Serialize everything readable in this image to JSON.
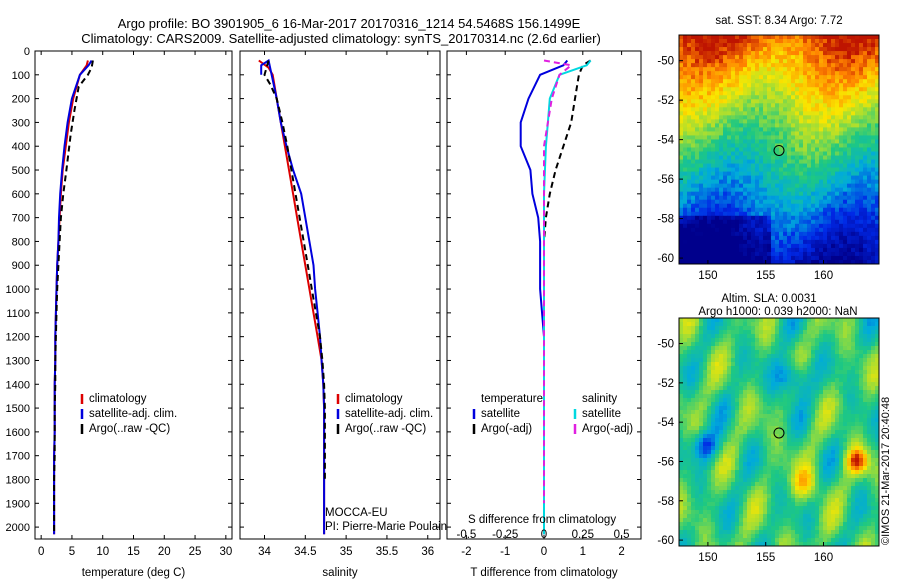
{
  "header": {
    "line1": "Argo profile: BO 3901905_6 16-Mar-2017 20170316_1214 54.5468S 156.1499E",
    "line2": "Climatology: CARS2009. Satellite-adjusted climatology: synTS_20170314.nc (2.6d earlier)"
  },
  "colors": {
    "climatology": "#dd0000",
    "satellite": "#0000dd",
    "argo": "#000000",
    "satellite_salinity": "#00d8e0",
    "argo_salinity_diff": "#e020e0"
  },
  "depth_axis": {
    "ylim": [
      0,
      2050
    ],
    "ticks": [
      "0",
      "100",
      "200",
      "300",
      "400",
      "500",
      "600",
      "700",
      "800",
      "900",
      "1000",
      "1100",
      "1200",
      "1300",
      "1400",
      "1500",
      "1600",
      "1700",
      "1800",
      "1900",
      "2000"
    ]
  },
  "chart_data": [
    {
      "id": "temperature",
      "type": "line",
      "xlabel": "temperature (deg C)",
      "xlim": [
        -1,
        31
      ],
      "xticks": [
        "0",
        "5",
        "10",
        "15",
        "20",
        "25",
        "30"
      ],
      "legend": [
        "climatology",
        "satellite-adj. clim.",
        "Argo(..raw -QC)"
      ],
      "series": [
        {
          "name": "climatology",
          "style": "solid",
          "x": [
            7.6,
            7.4,
            6.3,
            5.2,
            4.5,
            4.0,
            3.5,
            3.2,
            3.0,
            2.8,
            2.6,
            2.5,
            2.4,
            2.3,
            2.3,
            2.2,
            2.2,
            2.2,
            2.1,
            2.1,
            2.1
          ],
          "y": [
            40,
            60,
            100,
            200,
            300,
            400,
            500,
            600,
            700,
            800,
            900,
            1000,
            1100,
            1200,
            1300,
            1400,
            1500,
            1600,
            1700,
            1800,
            2030
          ]
        },
        {
          "name": "satellite-adj. clim.",
          "style": "solid",
          "x": [
            8.2,
            7.7,
            6.3,
            5.0,
            4.3,
            3.8,
            3.4,
            3.1,
            2.9,
            2.8,
            2.6,
            2.5,
            2.4,
            2.3,
            2.3,
            2.2,
            2.2,
            2.2,
            2.1,
            2.1,
            2.1
          ],
          "y": [
            40,
            60,
            100,
            200,
            300,
            400,
            500,
            600,
            700,
            800,
            900,
            1000,
            1100,
            1200,
            1300,
            1400,
            1500,
            1600,
            1700,
            1800,
            2030
          ]
        },
        {
          "name": "Argo(..raw -QC)",
          "style": "dashed",
          "x": [
            8.4,
            8.2,
            7.6,
            6.1,
            5.4,
            4.8,
            4.1,
            3.6,
            3.2,
            3.0,
            2.8,
            2.6,
            2.5,
            2.4,
            2.3,
            2.3,
            2.2,
            2.2,
            2.2,
            2.1,
            2.1
          ],
          "y": [
            40,
            70,
            100,
            150,
            250,
            350,
            500,
            600,
            700,
            800,
            900,
            1000,
            1100,
            1200,
            1300,
            1400,
            1500,
            1600,
            1700,
            1800,
            2030
          ]
        }
      ]
    },
    {
      "id": "salinity",
      "type": "line",
      "xlabel": "salinity",
      "xlim": [
        33.7,
        36.15
      ],
      "xticks": [
        "34",
        "34.5",
        "35",
        "35.5",
        "36"
      ],
      "legend": [
        "climatology",
        "satellite-adj. clim.",
        "Argo(..raw -QC)"
      ],
      "annotation": [
        "MOCCA-EU",
        "PI: Pierre-Marie Poulain"
      ],
      "series": [
        {
          "name": "climatology",
          "style": "solid",
          "x": [
            33.93,
            34.05,
            34.1,
            34.15,
            34.2,
            34.25,
            34.3,
            34.35,
            34.4,
            34.45,
            34.5,
            34.55,
            34.6,
            34.65,
            34.7,
            34.72,
            34.73,
            34.73,
            34.73,
            34.73,
            34.73
          ],
          "y": [
            40,
            70,
            100,
            200,
            300,
            400,
            500,
            600,
            700,
            800,
            900,
            1000,
            1100,
            1200,
            1300,
            1400,
            1500,
            1600,
            1700,
            1800,
            2030
          ]
        },
        {
          "name": "satellite-adj. clim.",
          "style": "solid",
          "x": [
            33.96,
            33.96,
            34.05,
            34.15,
            34.2,
            34.27,
            34.35,
            34.45,
            34.5,
            34.55,
            34.6,
            34.62,
            34.65,
            34.68,
            34.7,
            34.72,
            34.73,
            34.73,
            34.73,
            34.73,
            34.73
          ],
          "y": [
            100,
            60,
            40,
            200,
            300,
            400,
            500,
            600,
            700,
            800,
            900,
            1000,
            1100,
            1200,
            1300,
            1400,
            1500,
            1600,
            1700,
            1800,
            2030
          ]
        },
        {
          "name": "Argo(..raw -QC)",
          "style": "dashed",
          "x": [
            34.05,
            34.0,
            34.07,
            34.15,
            34.22,
            34.28,
            34.33,
            34.38,
            34.43,
            34.48,
            34.53,
            34.58,
            34.63,
            34.68,
            34.71,
            34.73,
            34.74,
            34.74,
            34.74,
            34.74
          ],
          "y": [
            40,
            100,
            140,
            200,
            300,
            400,
            500,
            600,
            700,
            800,
            900,
            1000,
            1100,
            1200,
            1300,
            1400,
            1500,
            1600,
            1700,
            1800
          ]
        }
      ]
    },
    {
      "id": "difference",
      "type": "line",
      "xlabel": "T difference from climatology",
      "xlabel2": "S difference from climatology",
      "xlim": [
        -2.5,
        2.5
      ],
      "xticks": [
        "-2",
        "-1",
        "0",
        "1",
        "2"
      ],
      "xticks_S": [
        "-0.5",
        "-0.25",
        "0",
        "0.25",
        "0.5"
      ],
      "legend_t": {
        "title": "temperature",
        "items": [
          "satellite",
          "Argo(-adj)"
        ]
      },
      "legend_s": {
        "title": "salinity",
        "items": [
          "satellite",
          "Argo(-adj)"
        ]
      },
      "series": [
        {
          "name": "satellite",
          "style": "solid",
          "x": [
            0.6,
            0.5,
            -0.1,
            -0.4,
            -0.6,
            -0.6,
            -0.35,
            -0.3,
            -0.15,
            -0.1,
            -0.1,
            -0.1,
            0.0,
            0.0,
            0.0,
            0.0,
            0.0,
            0.0,
            0.0
          ],
          "y": [
            40,
            60,
            100,
            200,
            300,
            400,
            500,
            600,
            700,
            800,
            900,
            1000,
            1200,
            1400,
            1600,
            1800,
            1900,
            2000,
            2030
          ]
        },
        {
          "name": "Argo(-adj)",
          "style": "dashed",
          "x": [
            1.2,
            1.0,
            0.9,
            0.8,
            0.7,
            0.5,
            0.3,
            0.15,
            0.05,
            0.0,
            0.0,
            0.0,
            0.0,
            0.0,
            0.0,
            0.0
          ],
          "y": [
            40,
            60,
            100,
            200,
            300,
            400,
            500,
            600,
            700,
            800,
            1000,
            1200,
            1400,
            1600,
            1800,
            2000
          ]
        },
        {
          "name": "satellite",
          "style": "solid",
          "x": [
            1.2,
            1.1,
            0.4,
            0.15,
            0.1,
            0.05,
            0.0,
            0.0,
            0.0,
            0.0,
            0.0,
            0.0,
            0.0
          ],
          "y": [
            40,
            60,
            100,
            200,
            300,
            400,
            600,
            800,
            1000,
            1300,
            1600,
            1900,
            2030
          ]
        },
        {
          "name": "Argo(-adj)",
          "style": "dashed",
          "x": [
            0.0,
            0.7,
            0.4,
            0.2,
            0.1,
            0.0,
            0.0,
            0.0,
            0.0,
            0.0,
            0.0,
            0.0
          ],
          "y": [
            40,
            60,
            100,
            200,
            300,
            400,
            600,
            800,
            1000,
            1300,
            1600,
            1900
          ]
        }
      ]
    }
  ],
  "maps": [
    {
      "id": "sst",
      "title": "sat. SST: 8.34  Argo: 7.72",
      "xlim": [
        147.5,
        164.8
      ],
      "ylim": [
        -60.3,
        -48.7
      ],
      "xticks": [
        "150",
        "155",
        "160"
      ],
      "yticks": [
        "-50",
        "-52",
        "-54",
        "-56",
        "-58",
        "-60"
      ],
      "marker": {
        "lon": 156.15,
        "lat": -54.55
      }
    },
    {
      "id": "sla",
      "title1": "Altim. SLA: 0.0031",
      "title2": "Argo h1000: 0.039 h2000: NaN",
      "xlim": [
        147.5,
        164.8
      ],
      "ylim": [
        -60.3,
        -48.7
      ],
      "xticks": [
        "150",
        "155",
        "160"
      ],
      "yticks": [
        "-50",
        "-52",
        "-54",
        "-56",
        "-58",
        "-60"
      ],
      "marker": {
        "lon": 156.15,
        "lat": -54.55
      }
    }
  ],
  "credit": "©IMOS 21-Mar-2017 20:40:48"
}
